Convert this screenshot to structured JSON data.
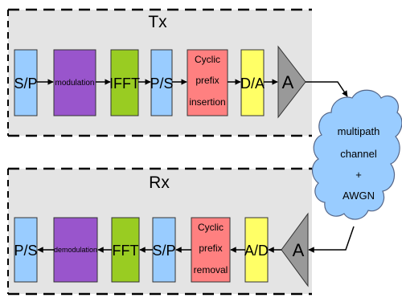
{
  "tx": {
    "title": "Tx",
    "blocks": [
      {
        "lines": [
          "S/P"
        ],
        "color": "#99ccff",
        "size": 18
      },
      {
        "lines": [
          "modulation"
        ],
        "color": "#9955cc",
        "size": 10
      },
      {
        "lines": [
          "IFFT"
        ],
        "color": "#99cc22",
        "size": 18
      },
      {
        "lines": [
          "P/S"
        ],
        "color": "#99ccff",
        "size": 18
      },
      {
        "lines": [
          "Cyclic",
          "prefix",
          "insertion"
        ],
        "color": "#ff8080",
        "size": 12
      },
      {
        "lines": [
          "D/A"
        ],
        "color": "#ffff66",
        "size": 18
      },
      {
        "lines": [
          "A"
        ],
        "color": "#999999",
        "size": 22
      }
    ]
  },
  "rx": {
    "title": "Rx",
    "blocks": [
      {
        "lines": [
          "P/S"
        ],
        "color": "#99ccff",
        "size": 18
      },
      {
        "lines": [
          "demodulation"
        ],
        "color": "#9955cc",
        "size": 9
      },
      {
        "lines": [
          "FFT"
        ],
        "color": "#99cc22",
        "size": 18
      },
      {
        "lines": [
          "S/P"
        ],
        "color": "#99ccff",
        "size": 18
      },
      {
        "lines": [
          "Cyclic",
          "prefix",
          "removal"
        ],
        "color": "#ff8080",
        "size": 12
      },
      {
        "lines": [
          "A/D"
        ],
        "color": "#ffff66",
        "size": 18
      },
      {
        "lines": [
          "A"
        ],
        "color": "#999999",
        "size": 22
      }
    ]
  },
  "channel": {
    "lines": [
      "multipath",
      "channel",
      "+",
      "AWGN"
    ],
    "color": "#99ccff"
  }
}
